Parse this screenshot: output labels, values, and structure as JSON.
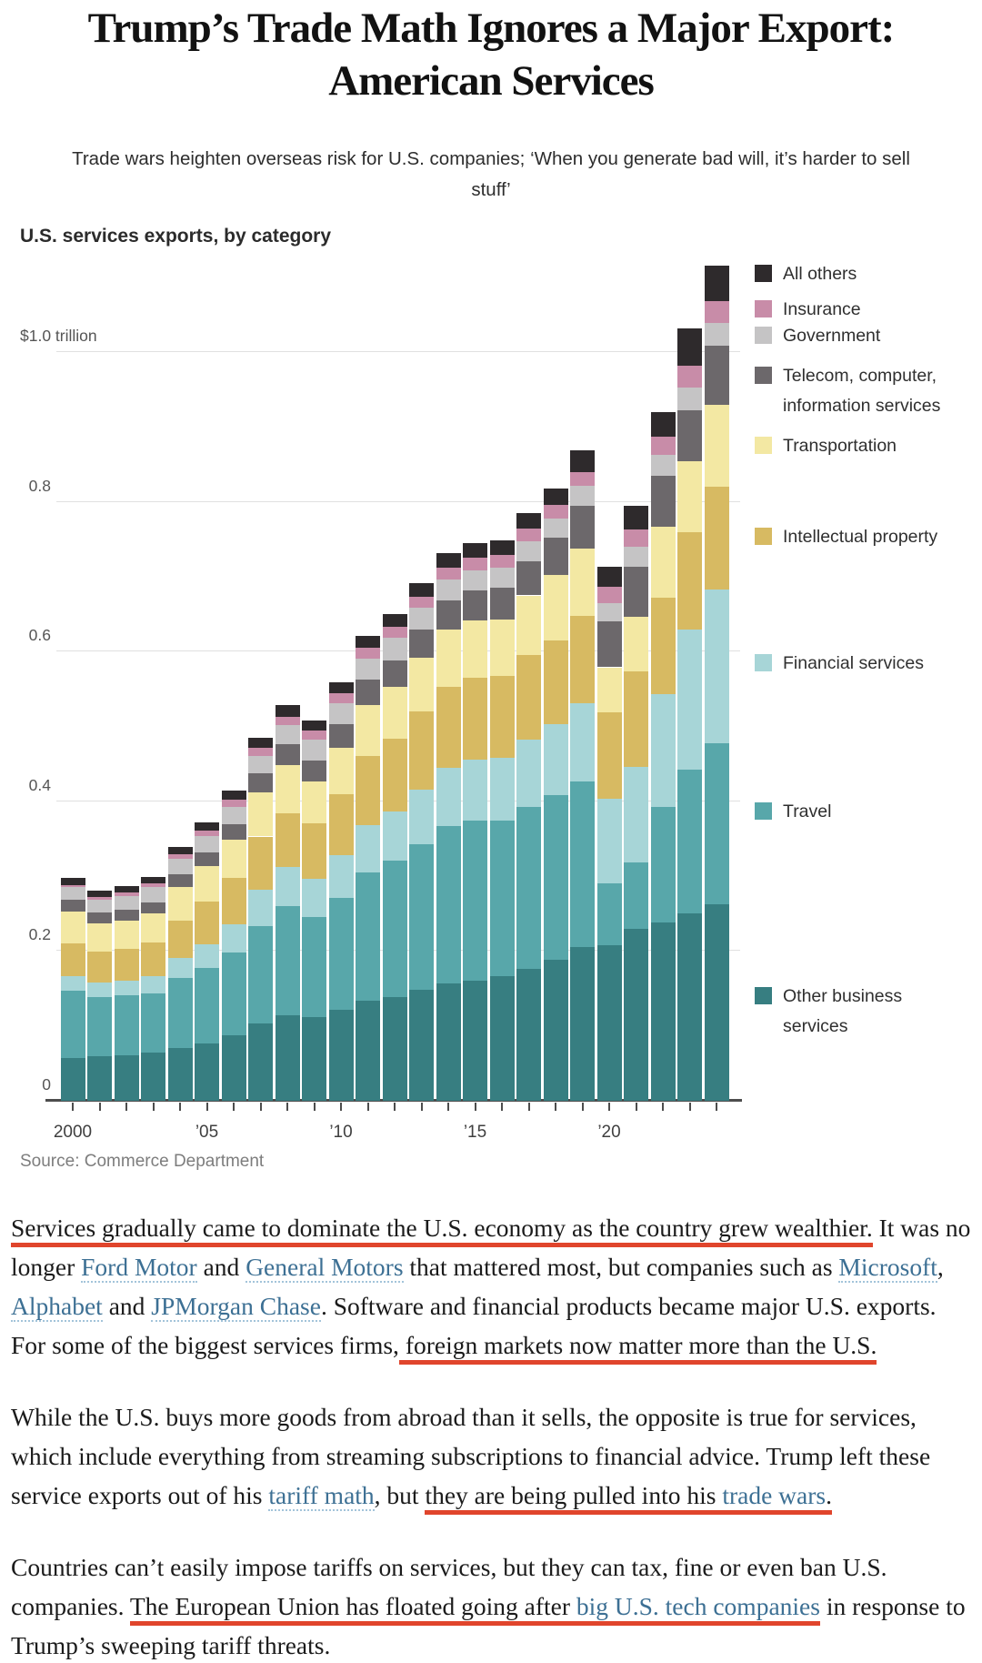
{
  "header": {
    "headline": "Trump’s Trade Math Ignores a Major Export: American Services",
    "subtitle": "Trade wars heighten overseas risk for U.S. companies; ‘When you generate bad will, it’s harder to sell stuff’"
  },
  "colors": {
    "highlight_red": "#e0452c",
    "link_blue": "#3d7094",
    "axis_gray": "#4d4d4d",
    "gridline_gray": "#e0e0e0"
  },
  "chart_data": {
    "type": "bar",
    "subtype": "stacked-vertical",
    "title": "U.S. services exports, by category",
    "unit": "billions of USD (axis shown in trillions)",
    "source": "Source: Commerce Department",
    "grid": "horizontal gridlines on",
    "legend_position": "right",
    "y_axis": {
      "range_trillions": [
        0,
        1.0
      ],
      "ticks": [
        {
          "value": 1.0,
          "label": "$1.0 trillion"
        },
        {
          "value": 0.8,
          "label": "0.8"
        },
        {
          "value": 0.6,
          "label": "0.6"
        },
        {
          "value": 0.4,
          "label": "0.4"
        },
        {
          "value": 0.2,
          "label": "0.2"
        },
        {
          "value": 0.0,
          "label": "0"
        }
      ]
    },
    "x_axis": {
      "ticks_every_year": true,
      "labels": [
        {
          "year_index": 0,
          "label": "2000"
        },
        {
          "year_index": 5,
          "label": "’05"
        },
        {
          "year_index": 10,
          "label": "’10"
        },
        {
          "year_index": 15,
          "label": "’15"
        },
        {
          "year_index": 20,
          "label": "’20"
        }
      ]
    },
    "years": [
      2000,
      2001,
      2002,
      2003,
      2004,
      2005,
      2006,
      2007,
      2008,
      2009,
      2010,
      2011,
      2012,
      2013,
      2014,
      2015,
      2016,
      2017,
      2018,
      2019,
      2020,
      2021,
      2022,
      2023,
      2024
    ],
    "series_bottom_to_top": [
      {
        "name": "Other business services",
        "legend_label": "Other business\nservices",
        "color": "#377e81",
        "values_billions": [
          57,
          59,
          61,
          64,
          71,
          77,
          88,
          103,
          114,
          112,
          121,
          134,
          139,
          148,
          157,
          161,
          166,
          176,
          188,
          205,
          208,
          230,
          238,
          250,
          262
        ]
      },
      {
        "name": "Travel",
        "legend_label": "Travel",
        "color": "#58a7aa",
        "values_billions": [
          90,
          80,
          80,
          80,
          93,
          101,
          110,
          130,
          146,
          134,
          150,
          171,
          182,
          195,
          210,
          213,
          208,
          216,
          220,
          221,
          83,
          88,
          155,
          192,
          215
        ]
      },
      {
        "name": "Financial services",
        "legend_label": "Financial services",
        "color": "#a7d5d7",
        "values_billions": [
          20,
          19,
          20,
          22,
          27,
          31,
          38,
          49,
          52,
          51,
          57,
          63,
          66,
          72,
          78,
          82,
          84,
          90,
          95,
          105,
          112,
          128,
          150,
          187,
          206
        ]
      },
      {
        "name": "Intellectual property",
        "legend_label": "Intellectual property",
        "color": "#d7ba62",
        "values_billions": [
          43,
          41,
          42,
          45,
          50,
          57,
          62,
          71,
          72,
          74,
          82,
          93,
          97,
          105,
          108,
          109,
          110,
          113,
          112,
          117,
          116,
          128,
          129,
          131,
          137
        ]
      },
      {
        "name": "Transportation",
        "legend_label": "Transportation",
        "color": "#f3e8a3",
        "values_billions": [
          43,
          38,
          38,
          39,
          44,
          47,
          51,
          59,
          64,
          56,
          62,
          68,
          69,
          72,
          76,
          77,
          75,
          80,
          87,
          90,
          60,
          72,
          95,
          94,
          110
        ]
      },
      {
        "name": "Telecom, computer, information services",
        "legend_label": "Telecom, computer,\ninformation services",
        "color": "#6c686b",
        "values_billions": [
          15,
          14,
          14,
          15,
          17,
          19,
          21,
          25,
          28,
          28,
          31,
          33,
          35,
          37,
          39,
          40,
          42,
          46,
          50,
          57,
          61,
          67,
          68,
          68,
          78
        ]
      },
      {
        "name": "Government",
        "legend_label": "Government",
        "color": "#c5c4c5",
        "values_billions": [
          17,
          18,
          19,
          20,
          21,
          22,
          23,
          24,
          26,
          27,
          28,
          29,
          30,
          29,
          28,
          27,
          27,
          26,
          26,
          26,
          25,
          27,
          28,
          31,
          31
        ]
      },
      {
        "name": "Insurance",
        "legend_label": "Insurance",
        "color": "#c88ca8",
        "values_billions": [
          3,
          3,
          4,
          5,
          6,
          7,
          9,
          10,
          11,
          12,
          13,
          14,
          15,
          15,
          16,
          16,
          17,
          17,
          18,
          19,
          21,
          23,
          24,
          29,
          29
        ]
      },
      {
        "name": "All others",
        "legend_label": "All others",
        "color": "#2e2a2c",
        "values_billions": [
          10,
          9,
          9,
          9,
          10,
          11,
          12,
          14,
          15,
          14,
          15,
          16,
          17,
          18,
          19,
          20,
          20,
          21,
          22,
          29,
          27,
          32,
          33,
          50,
          48
        ]
      }
    ]
  },
  "article": {
    "paragraphs": [
      [
        {
          "t": "Services gradually came to dominate the U.S. economy as the country grew wealthier.",
          "s": "red"
        },
        {
          "t": " It was no longer ",
          "s": "plain"
        },
        {
          "t": "Ford Motor",
          "s": "link"
        },
        {
          "t": " and ",
          "s": "plain"
        },
        {
          "t": "General Motors",
          "s": "link"
        },
        {
          "t": " that mattered most, but companies such as ",
          "s": "plain"
        },
        {
          "t": "Microsoft",
          "s": "link"
        },
        {
          "t": ", ",
          "s": "plain"
        },
        {
          "t": "Alphabet",
          "s": "link"
        },
        {
          "t": " and ",
          "s": "plain"
        },
        {
          "t": "JPMorgan Chase",
          "s": "link"
        },
        {
          "t": ". Software and financial products became major U.S. exports. For some of the biggest services firms,",
          "s": "plain"
        },
        {
          "t": " foreign markets now matter more than the U.S.",
          "s": "red"
        }
      ],
      [
        {
          "t": "While the U.S. buys more goods from abroad than it sells, the opposite is true for services, which include everything from streaming subscriptions to financial advice. Trump left these service exports out of his ",
          "s": "plain"
        },
        {
          "t": "tariff math",
          "s": "link"
        },
        {
          "t": ", but ",
          "s": "plain"
        },
        {
          "t": "they are being pulled into his ",
          "s": "red"
        },
        {
          "t": "trade wars",
          "s": "redlink"
        },
        {
          "t": ".",
          "s": "red"
        }
      ],
      [
        {
          "t": "Countries can’t easily impose tariffs on services, but they can tax, fine or even ban U.S. companies. ",
          "s": "plain"
        },
        {
          "t": "The European Union has floated going after ",
          "s": "red"
        },
        {
          "t": "big U.S. tech companies",
          "s": "redlink"
        },
        {
          "t": " in response to Trump’s sweeping tariff threats.",
          "s": "plain"
        }
      ]
    ]
  }
}
